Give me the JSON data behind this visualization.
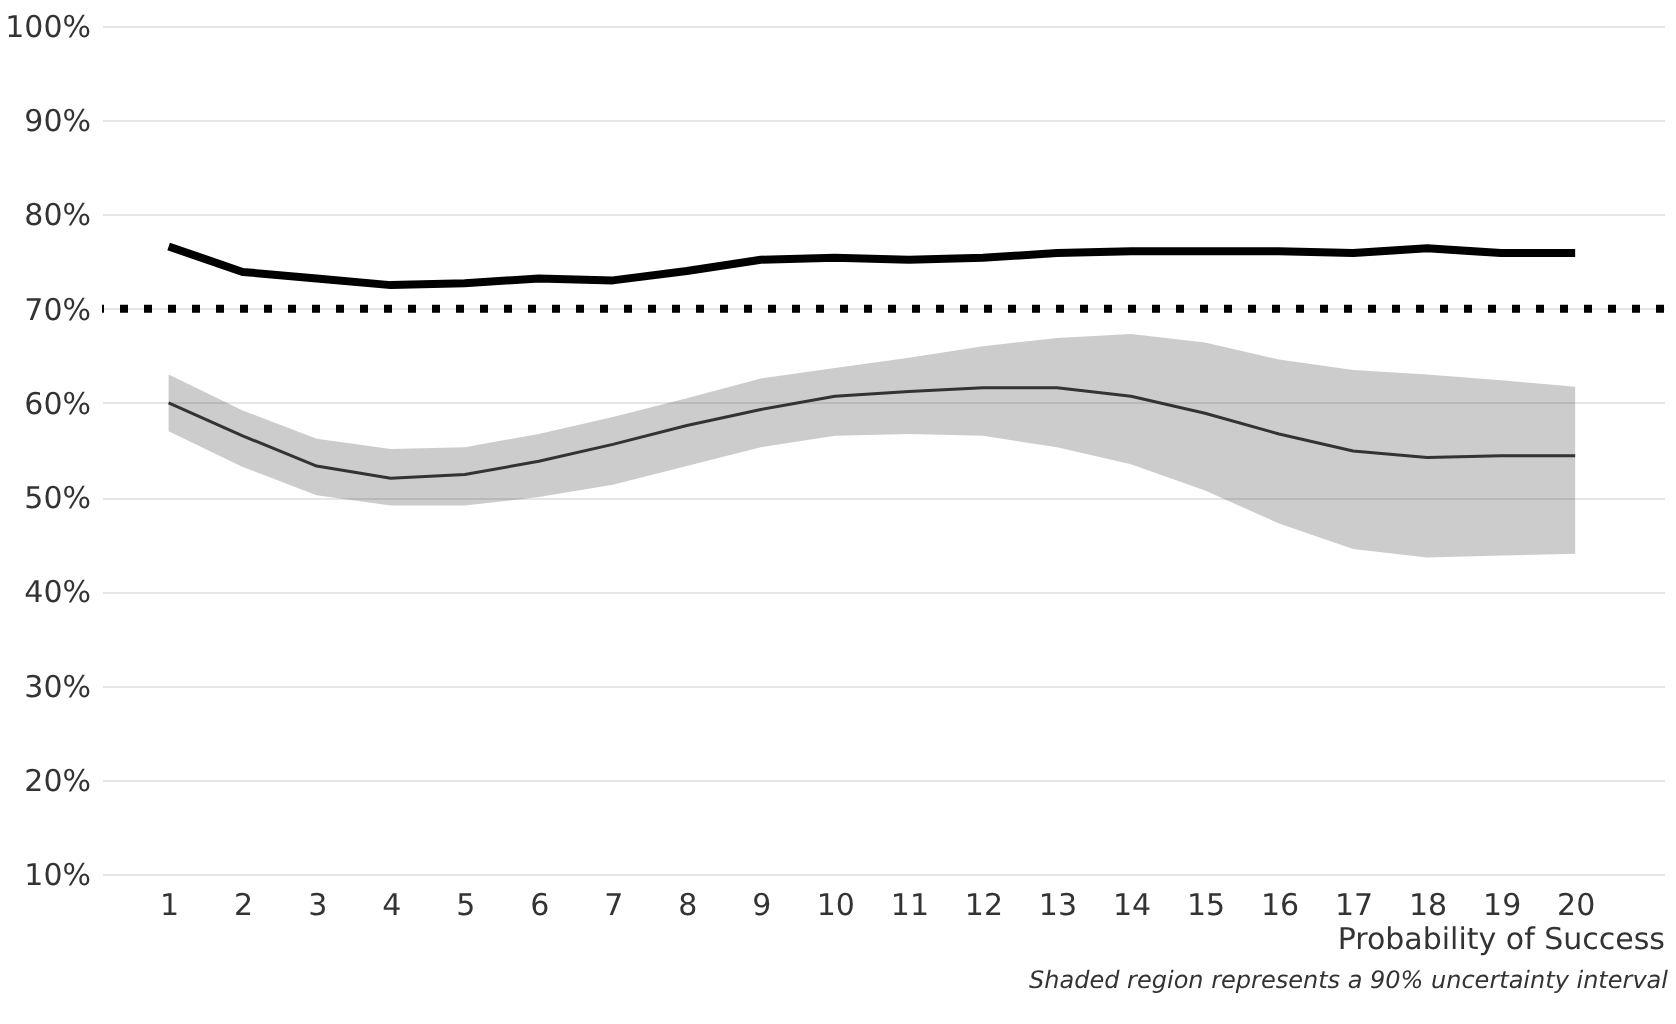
{
  "chart_data": {
    "type": "line",
    "x": [
      1,
      2,
      3,
      4,
      5,
      6,
      7,
      8,
      9,
      10,
      11,
      12,
      13,
      14,
      15,
      16,
      17,
      18,
      19,
      20
    ],
    "series": [
      {
        "color": "#000000",
        "values": [
          76.6,
          73.9,
          73.2,
          72.5,
          72.7,
          73.2,
          73.0,
          74.0,
          75.2,
          75.4,
          75.2,
          75.4,
          75.9,
          76.1,
          76.1,
          76.1,
          75.9,
          76.4,
          75.9,
          75.9
        ]
      },
      {
        "color": "#333333",
        "values": [
          60.0,
          56.5,
          53.3,
          52.0,
          52.4,
          53.8,
          55.6,
          57.6,
          59.3,
          60.7,
          61.2,
          61.6,
          61.6,
          60.7,
          58.9,
          56.7,
          54.9,
          54.2,
          54.4,
          54.4
        ],
        "lower": [
          57.0,
          53.2,
          50.2,
          49.1,
          49.1,
          50.0,
          51.3,
          53.3,
          55.3,
          56.5,
          56.7,
          56.5,
          55.3,
          53.5,
          50.7,
          47.2,
          44.5,
          43.6,
          43.8,
          44.0
        ],
        "upper": [
          63.0,
          59.2,
          56.2,
          55.1,
          55.3,
          56.7,
          58.5,
          60.5,
          62.6,
          63.7,
          64.8,
          66.0,
          66.9,
          67.3,
          66.4,
          64.6,
          63.5,
          63.0,
          62.4,
          61.7
        ]
      }
    ],
    "xlabel": "Probability of Success",
    "xlim": [
      0.1,
      21.2
    ],
    "xticks": [
      1,
      2,
      3,
      4,
      5,
      6,
      7,
      8,
      9,
      10,
      11,
      12,
      13,
      14,
      15,
      16,
      17,
      18,
      19,
      20
    ],
    "ylim": [
      10,
      100
    ],
    "yticks": [
      {
        "value": 10,
        "label": "10%"
      },
      {
        "value": 20,
        "label": "20%"
      },
      {
        "value": 30,
        "label": "30%"
      },
      {
        "value": 40,
        "label": "40%"
      },
      {
        "value": 50,
        "label": "50%"
      },
      {
        "value": 60,
        "label": "60%"
      },
      {
        "value": 70,
        "label": "70%"
      },
      {
        "value": 80,
        "label": "80%"
      },
      {
        "value": 90,
        "label": "90%"
      },
      {
        "value": 100,
        "label": "100%"
      }
    ],
    "ref_lines": [
      {
        "axis": "y",
        "value": 70,
        "color": "#000000",
        "line_style": "dotted"
      }
    ],
    "grid": "y",
    "annotations": [
      "Shaded region represents a 90% uncertainty interval"
    ]
  }
}
